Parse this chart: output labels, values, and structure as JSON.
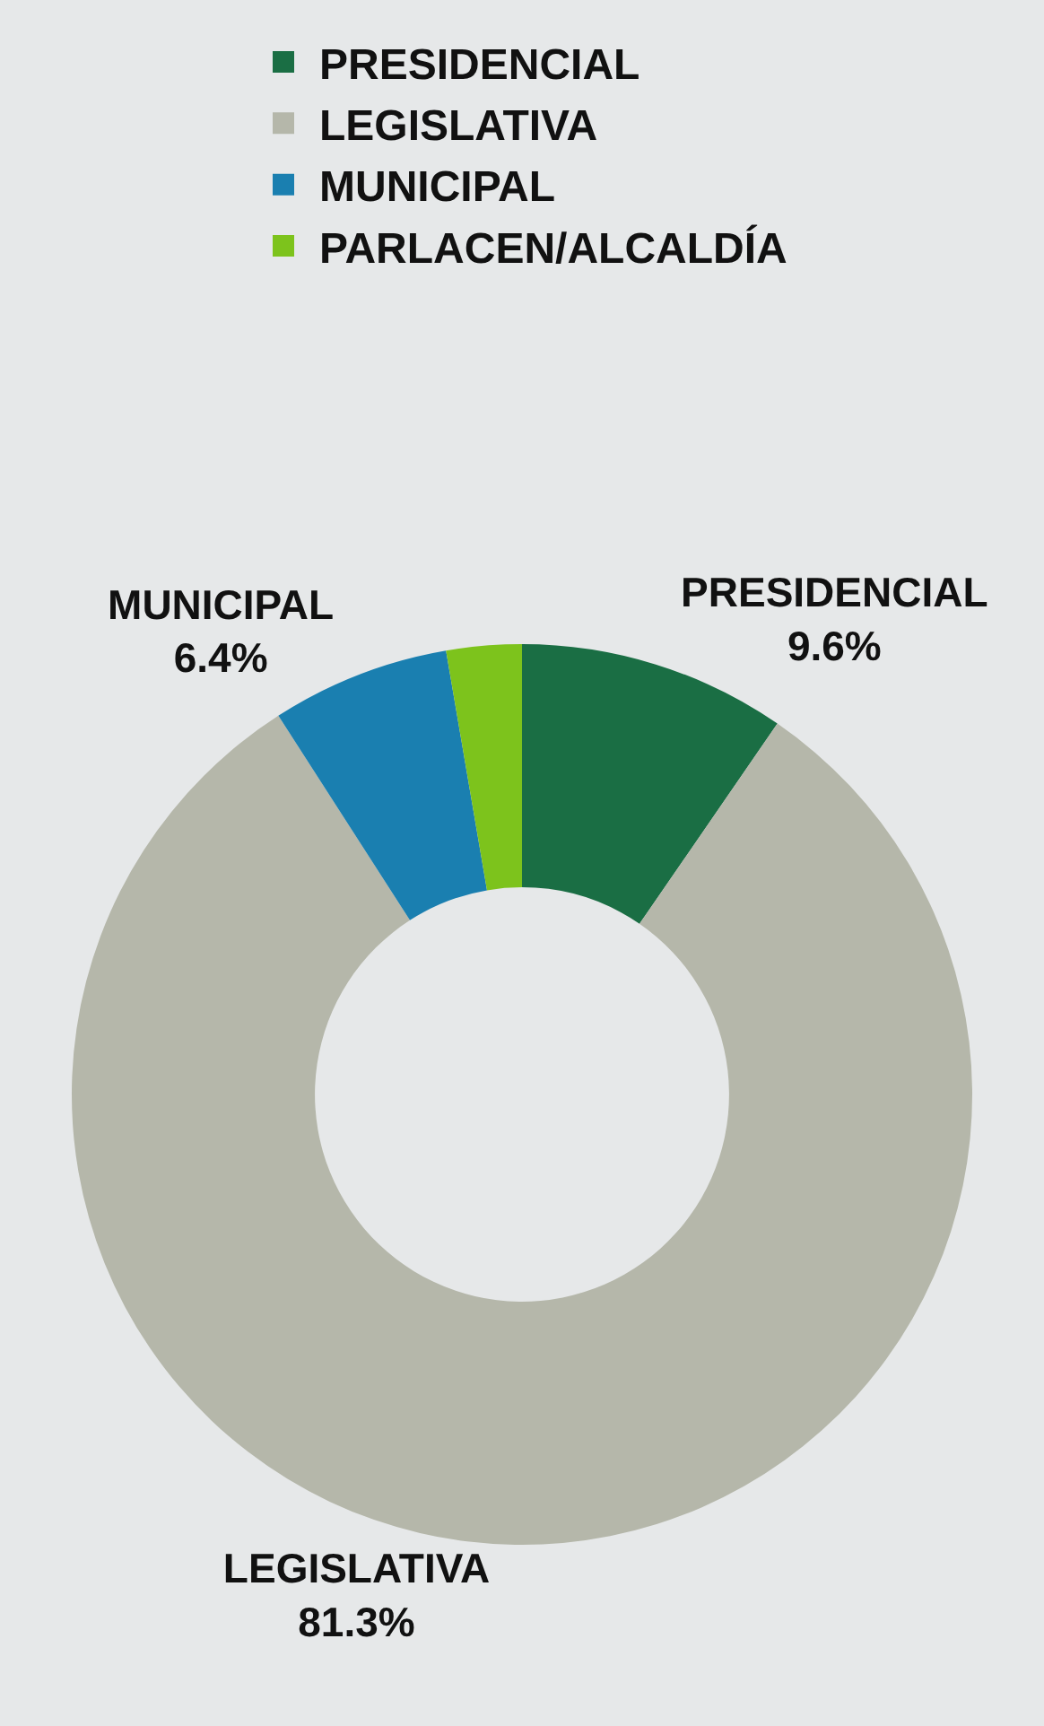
{
  "chart_data": {
    "type": "donut",
    "categories": [
      "PRESIDENCIAL",
      "LEGISLATIVA",
      "MUNICIPAL",
      "PARLACEN/ALCALDÍA"
    ],
    "values": [
      9.6,
      81.3,
      6.4,
      2.7
    ],
    "colors": [
      "#1a6e44",
      "#b5b7aa",
      "#1a7fb0",
      "#7dc31c"
    ],
    "value_labels": [
      "9.6%",
      "81.3%",
      "6.4%",
      null
    ],
    "legend": "top"
  }
}
